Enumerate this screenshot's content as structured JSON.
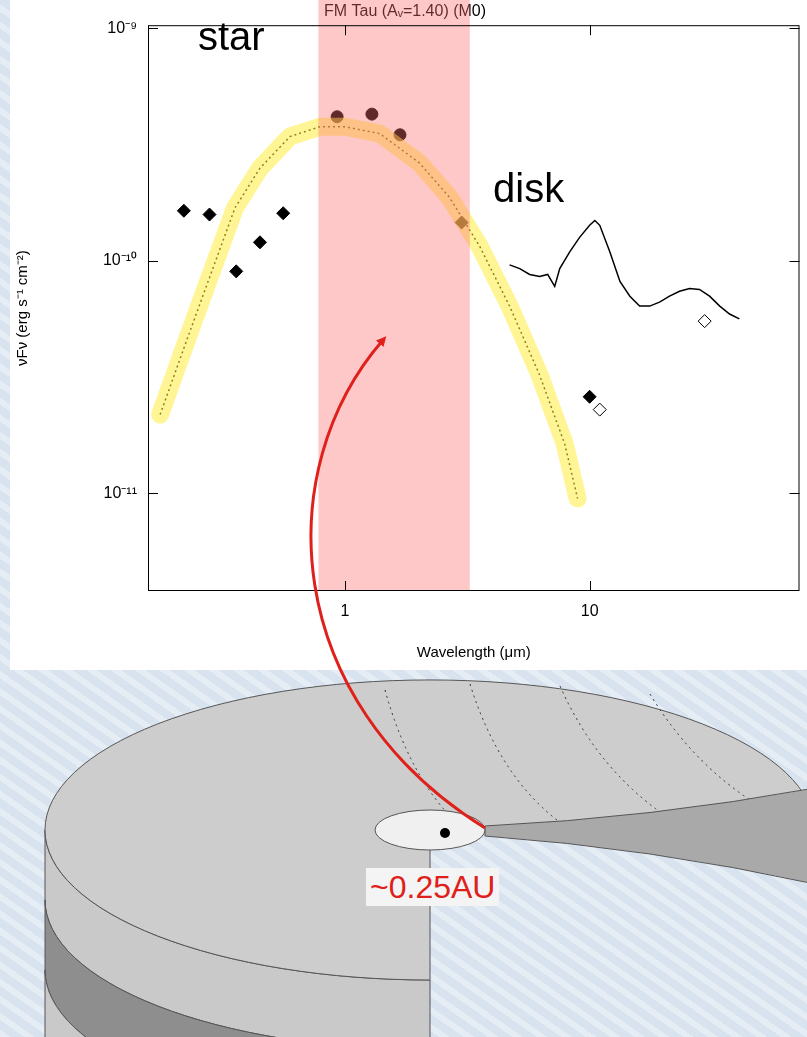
{
  "chart_data": {
    "type": "scatter",
    "title": "FM Tau (Aᵥ=1.40) (M0)",
    "x_label": "Wavelength (μm)",
    "y_label": "νFν (erg s⁻¹ cm⁻²)",
    "log": true,
    "grid": false,
    "xlim": [
      0.157,
      72
    ],
    "xticks": [
      1,
      10
    ],
    "ylim": [
      3.8e-12,
      1.03e-09
    ],
    "yticks": [
      {
        "value": 1e-11,
        "label": "10⁻¹¹"
      },
      {
        "value": 1e-10,
        "label": "10⁻¹⁰"
      },
      {
        "value": 1e-09,
        "label": "10⁻⁹"
      }
    ],
    "shaded_range": [
      0.78,
      3.24
    ],
    "annotations": [
      "star",
      "disk"
    ],
    "series": [
      {
        "type": "scatter",
        "marker": "diamond",
        "color": "#000000",
        "x": [
          0.22,
          0.28,
          0.36,
          0.45,
          0.56,
          3.0,
          10.0
        ],
        "values": [
          1.64e-10,
          1.58e-10,
          9e-11,
          1.2e-10,
          1.6e-10,
          1.46e-10,
          2.6e-11
        ]
      },
      {
        "type": "scatter",
        "marker": "circle",
        "color": "#000000",
        "x": [
          0.93,
          1.29,
          1.68
        ],
        "values": [
          4.16e-10,
          4.27e-10,
          3.48e-10
        ]
      },
      {
        "type": "scatter",
        "marker": "open_diamond",
        "color": "#000000",
        "x": [
          11.0,
          29.5
        ],
        "values": [
          2.29e-11,
          5.5e-11
        ]
      },
      {
        "type": "line",
        "line_style": "solid",
        "color": "#000000",
        "x": [
          4.71,
          5.18,
          5.69,
          6.25,
          6.74,
          7.2,
          7.55,
          8.28,
          9.1,
          10.0,
          10.5,
          11.0,
          12.1,
          13.3,
          14.6,
          16.0,
          17.6,
          19.3,
          21.2,
          23.3,
          25.6,
          28.1,
          30.9,
          34.0,
          37.3,
          40.9
        ],
        "values": [
          9.6e-11,
          9.25e-11,
          8.73e-11,
          8.55e-11,
          8.73e-11,
          7.76e-11,
          9.25e-11,
          1.09e-10,
          1.26e-10,
          1.42e-10,
          1.49e-10,
          1.42e-10,
          1.09e-10,
          8.15e-11,
          7.04e-11,
          6.38e-11,
          6.38e-11,
          6.64e-11,
          7.04e-11,
          7.39e-11,
          7.6e-11,
          7.53e-11,
          7.04e-11,
          6.38e-11,
          5.9e-11,
          5.62e-11
        ]
      },
      {
        "type": "line",
        "line_style": "dotted",
        "color": "#000000",
        "x": [
          0.176,
          0.222,
          0.281,
          0.356,
          0.45,
          0.597,
          0.791,
          1.0,
          1.39,
          2.02,
          2.68,
          3.56,
          4.71,
          6.25,
          7.91,
          8.93
        ],
        "values": [
          2.18e-11,
          4.32e-11,
          8.55e-11,
          1.69e-10,
          2.5e-10,
          3.42e-10,
          3.77e-10,
          3.77e-10,
          3.52e-10,
          2.63e-10,
          1.87e-10,
          1.15e-10,
          6.38e-11,
          3.22e-11,
          1.63e-11,
          9.5e-12
        ]
      }
    ]
  },
  "diagram": {
    "inner_edge_label": "~0.25AU"
  }
}
